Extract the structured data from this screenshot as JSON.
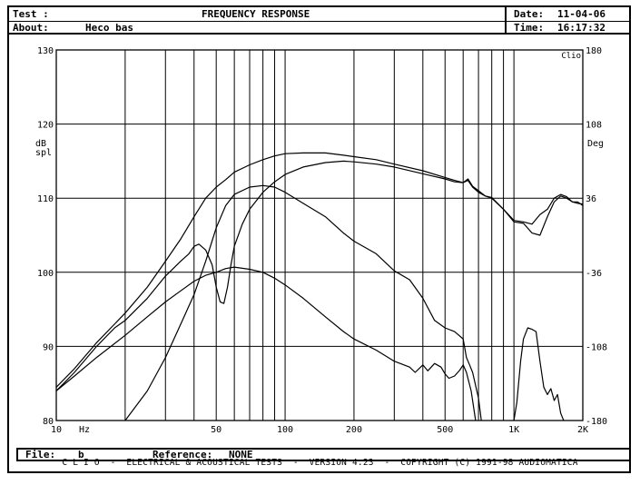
{
  "header": {
    "test_label": "Test :",
    "about_label": "About:",
    "about_value": "Heco bas",
    "title": "FREQUENCY RESPONSE",
    "date_label": "Date:",
    "date_value": "11-04-06",
    "time_label": "Time:",
    "time_value": "16:17:32"
  },
  "footer": {
    "file_label": "File:",
    "file_value": "b",
    "reference_label": "Reference:",
    "reference_value": "NONE",
    "copyright": "C L I O  -  ELECTRICAL & ACOUSTICAL TESTS  -  VERSION 4.23  -  COPYRIGHT (C) 1991-98 AUDIOMATICA"
  },
  "chart_data": {
    "type": "line",
    "xscale": "log",
    "xlim": [
      10,
      2000
    ],
    "ylim": [
      80,
      130
    ],
    "y2lim": [
      -180,
      180
    ],
    "ylabel": "dB\nspl",
    "y2label": "Deg",
    "corner_label": "Clio",
    "x_unit": "Hz",
    "x_ticks": [
      {
        "v": 10,
        "t": "10"
      },
      {
        "v": 50,
        "t": "50"
      },
      {
        "v": 100,
        "t": "100"
      },
      {
        "v": 200,
        "t": "200"
      },
      {
        "v": 500,
        "t": "500"
      },
      {
        "v": 1000,
        "t": "1K"
      },
      {
        "v": 2000,
        "t": "2K"
      }
    ],
    "y_ticks": [
      80,
      90,
      100,
      110,
      120,
      130
    ],
    "y2_ticks": [
      -180,
      -108,
      -36,
      36,
      108,
      180
    ],
    "grid": true,
    "colors": {
      "line": "#000000",
      "grid": "#000000"
    },
    "series": [
      {
        "values": [
          [
            10,
            84.5
          ],
          [
            12,
            87
          ],
          [
            15,
            90.5
          ],
          [
            20,
            94.5
          ],
          [
            25,
            98
          ],
          [
            30,
            101.5
          ],
          [
            35,
            104.5
          ],
          [
            40,
            107.5
          ],
          [
            45,
            110
          ],
          [
            50,
            111.5
          ],
          [
            55,
            112.5
          ],
          [
            60,
            113.5
          ],
          [
            70,
            114.5
          ],
          [
            80,
            115.2
          ],
          [
            90,
            115.7
          ],
          [
            100,
            116
          ],
          [
            120,
            116.1
          ],
          [
            150,
            116.1
          ],
          [
            180,
            115.8
          ],
          [
            200,
            115.6
          ],
          [
            250,
            115.2
          ],
          [
            300,
            114.6
          ],
          [
            400,
            113.7
          ],
          [
            500,
            112.8
          ],
          [
            550,
            112.4
          ],
          [
            600,
            112.1
          ],
          [
            630,
            112.6
          ],
          [
            660,
            111.6
          ],
          [
            700,
            111
          ],
          [
            750,
            110.3
          ],
          [
            800,
            110.1
          ],
          [
            900,
            108.5
          ],
          [
            1000,
            107
          ],
          [
            1100,
            106.8
          ],
          [
            1200,
            106.5
          ],
          [
            1300,
            107.8
          ],
          [
            1400,
            108.5
          ],
          [
            1500,
            110
          ],
          [
            1600,
            110.5
          ],
          [
            1700,
            110.2
          ],
          [
            1800,
            109.5
          ],
          [
            1900,
            109.5
          ],
          [
            2000,
            109
          ]
        ]
      },
      {
        "values": [
          [
            10,
            84
          ],
          [
            12,
            86.5
          ],
          [
            15,
            90
          ],
          [
            18,
            92.5
          ],
          [
            20,
            93.5
          ],
          [
            25,
            96.5
          ],
          [
            30,
            99.5
          ],
          [
            35,
            101.5
          ],
          [
            38,
            102.5
          ],
          [
            40,
            103.5
          ],
          [
            42,
            103.8
          ],
          [
            45,
            103
          ],
          [
            48,
            101
          ],
          [
            50,
            98
          ],
          [
            52,
            96
          ],
          [
            54,
            95.8
          ],
          [
            56,
            98
          ],
          [
            58,
            101
          ],
          [
            60,
            103.5
          ],
          [
            65,
            106.5
          ],
          [
            70,
            108.5
          ],
          [
            80,
            110.8
          ],
          [
            90,
            112.2
          ],
          [
            100,
            113.2
          ],
          [
            120,
            114.2
          ],
          [
            150,
            114.8
          ],
          [
            180,
            115
          ],
          [
            200,
            114.9
          ],
          [
            250,
            114.6
          ],
          [
            300,
            114.2
          ],
          [
            400,
            113.3
          ],
          [
            500,
            112.6
          ],
          [
            550,
            112.2
          ],
          [
            600,
            112.1
          ],
          [
            630,
            112.4
          ],
          [
            660,
            111.5
          ],
          [
            700,
            110.8
          ],
          [
            750,
            110.3
          ],
          [
            800,
            110
          ],
          [
            900,
            108.5
          ],
          [
            1000,
            106.8
          ],
          [
            1100,
            106.6
          ],
          [
            1200,
            105.3
          ],
          [
            1300,
            105
          ],
          [
            1400,
            107.5
          ],
          [
            1500,
            109.5
          ],
          [
            1600,
            110.3
          ],
          [
            1700,
            110
          ],
          [
            1800,
            109.5
          ],
          [
            1900,
            109.3
          ],
          [
            2000,
            109.2
          ]
        ]
      },
      {
        "values": [
          [
            20,
            80
          ],
          [
            25,
            84
          ],
          [
            30,
            88.5
          ],
          [
            35,
            93
          ],
          [
            40,
            97
          ],
          [
            45,
            101.5
          ],
          [
            50,
            106
          ],
          [
            55,
            109
          ],
          [
            60,
            110.5
          ],
          [
            70,
            111.5
          ],
          [
            80,
            111.7
          ],
          [
            90,
            111.5
          ],
          [
            100,
            110.8
          ],
          [
            120,
            109.3
          ],
          [
            150,
            107.5
          ],
          [
            180,
            105.3
          ],
          [
            200,
            104.2
          ],
          [
            250,
            102.5
          ],
          [
            300,
            100.2
          ],
          [
            350,
            99
          ],
          [
            400,
            96.5
          ],
          [
            450,
            93.5
          ],
          [
            500,
            92.5
          ],
          [
            550,
            92
          ],
          [
            600,
            91
          ],
          [
            620,
            88.5
          ],
          [
            640,
            87.5
          ],
          [
            660,
            86.5
          ],
          [
            700,
            83
          ],
          [
            720,
            80
          ]
        ]
      },
      {
        "values": [
          [
            10,
            84
          ],
          [
            12,
            86
          ],
          [
            15,
            88.5
          ],
          [
            20,
            91.5
          ],
          [
            25,
            94
          ],
          [
            30,
            96
          ],
          [
            35,
            97.5
          ],
          [
            40,
            98.8
          ],
          [
            45,
            99.6
          ],
          [
            50,
            100
          ],
          [
            55,
            100.5
          ],
          [
            60,
            100.7
          ],
          [
            70,
            100.4
          ],
          [
            80,
            100
          ],
          [
            90,
            99.2
          ],
          [
            100,
            98.3
          ],
          [
            120,
            96.5
          ],
          [
            150,
            94
          ],
          [
            180,
            92
          ],
          [
            200,
            91
          ],
          [
            250,
            89.5
          ],
          [
            300,
            88
          ],
          [
            350,
            87.2
          ],
          [
            370,
            86.5
          ],
          [
            400,
            87.5
          ],
          [
            420,
            86.7
          ],
          [
            450,
            87.7
          ],
          [
            480,
            87.2
          ],
          [
            500,
            86.3
          ],
          [
            520,
            85.7
          ],
          [
            550,
            86
          ],
          [
            580,
            86.8
          ],
          [
            600,
            87.5
          ],
          [
            620,
            86.5
          ],
          [
            650,
            84
          ],
          [
            680,
            80
          ]
        ]
      },
      {
        "values": [
          [
            1000,
            80
          ],
          [
            1030,
            82.5
          ],
          [
            1070,
            88
          ],
          [
            1100,
            91
          ],
          [
            1150,
            92.5
          ],
          [
            1200,
            92.3
          ],
          [
            1250,
            92
          ],
          [
            1300,
            88
          ],
          [
            1350,
            84.5
          ],
          [
            1400,
            83.5
          ],
          [
            1450,
            84.3
          ],
          [
            1500,
            82.7
          ],
          [
            1550,
            83.5
          ],
          [
            1600,
            81
          ],
          [
            1650,
            80
          ]
        ]
      }
    ]
  }
}
